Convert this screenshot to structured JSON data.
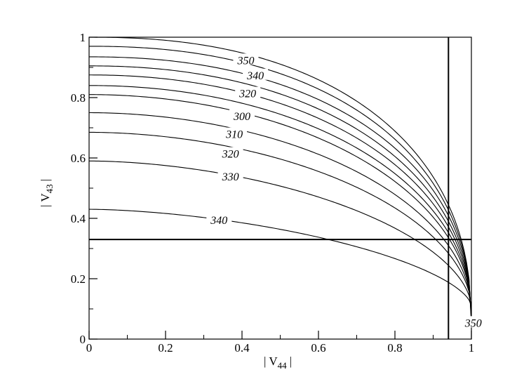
{
  "chart_data": {
    "type": "line",
    "title": "",
    "xlabel": "| V",
    "xlabel_sub": "44",
    "xlabel_end": "|",
    "ylabel": "| V",
    "ylabel_sub": "43",
    "ylabel_end": "|",
    "xlim": [
      0,
      1
    ],
    "ylim": [
      0,
      1
    ],
    "grid": false,
    "x_ticks": [
      {
        "value": 0,
        "label": "0"
      },
      {
        "value": 0.2,
        "label": "0.2"
      },
      {
        "value": 0.4,
        "label": "0.4"
      },
      {
        "value": 0.6,
        "label": "0.6"
      },
      {
        "value": 0.8,
        "label": "0.8"
      },
      {
        "value": 1,
        "label": "1"
      }
    ],
    "y_ticks": [
      {
        "value": 0,
        "label": "0"
      },
      {
        "value": 0.2,
        "label": "0.2"
      },
      {
        "value": 0.4,
        "label": "0.4"
      },
      {
        "value": 0.6,
        "label": "0.6"
      },
      {
        "value": 0.8,
        "label": "0.8"
      },
      {
        "value": 1,
        "label": "1"
      }
    ],
    "reference_lines": {
      "vertical_x": 0.94,
      "horizontal_y": 0.33
    },
    "series": [
      {
        "y0": 1.0,
        "y_end": 0.05,
        "p": 2.3
      },
      {
        "y0": 0.97,
        "y_end": 0.06,
        "p": 2.25
      },
      {
        "y0": 0.935,
        "y_end": 0.07,
        "p": 2.2
      },
      {
        "y0": 0.905,
        "y_end": 0.075,
        "p": 2.15
      },
      {
        "y0": 0.875,
        "y_end": 0.08,
        "p": 2.1
      },
      {
        "y0": 0.84,
        "y_end": 0.085,
        "p": 2.05
      },
      {
        "y0": 0.81,
        "y_end": 0.09,
        "p": 2.0
      },
      {
        "y0": 0.75,
        "y_end": 0.095,
        "p": 1.95
      },
      {
        "y0": 0.685,
        "y_end": 0.1,
        "p": 1.9
      },
      {
        "y0": 0.59,
        "y_end": 0.105,
        "p": 1.8
      },
      {
        "y0": 0.43,
        "y_end": 0.11,
        "p": 1.65
      }
    ],
    "annotations": [
      {
        "text": "350",
        "x": 0.41,
        "y": 0.925
      },
      {
        "text": "340",
        "x": 0.435,
        "y": 0.875
      },
      {
        "text": "320",
        "x": 0.415,
        "y": 0.815
      },
      {
        "text": "300",
        "x": 0.4,
        "y": 0.74
      },
      {
        "text": "310",
        "x": 0.38,
        "y": 0.68
      },
      {
        "text": "320",
        "x": 0.37,
        "y": 0.615
      },
      {
        "text": "330",
        "x": 0.37,
        "y": 0.54
      },
      {
        "text": "340",
        "x": 0.34,
        "y": 0.395
      },
      {
        "text": "350",
        "x": 1.005,
        "y": 0.055
      }
    ]
  }
}
